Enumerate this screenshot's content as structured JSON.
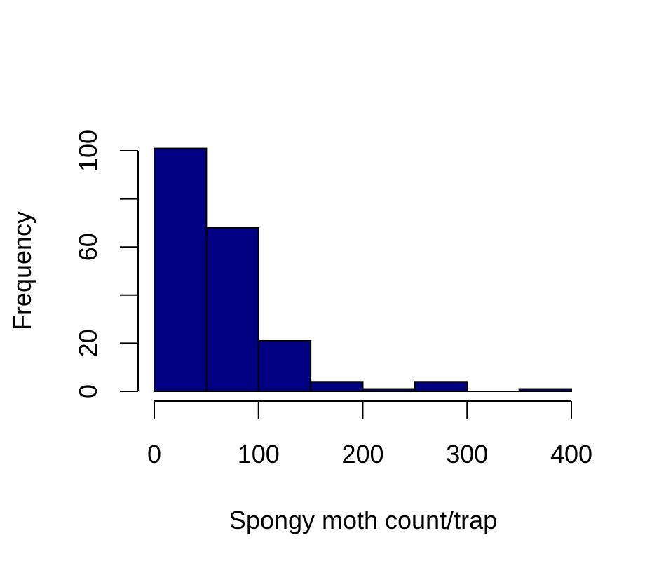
{
  "chart_data": {
    "type": "bar",
    "subtype": "histogram",
    "title": "",
    "xlabel": "Spongy moth count/trap",
    "ylabel": "Frequency",
    "bin_edges": [
      0,
      50,
      100,
      150,
      200,
      250,
      300,
      350,
      400
    ],
    "values": [
      101,
      68,
      21,
      4,
      1,
      4,
      0,
      1
    ],
    "xlim": [
      0,
      400
    ],
    "ylim": [
      0,
      100
    ],
    "x_ticks": [
      0,
      100,
      200,
      300,
      400
    ],
    "y_ticks": [
      0,
      20,
      40,
      60,
      80,
      100
    ],
    "y_tick_labels": [
      "0",
      "20",
      "",
      "60",
      "",
      "100"
    ],
    "grid": false,
    "legend": "none",
    "bar_color": "#000080",
    "bar_edge_color": "#000000"
  }
}
